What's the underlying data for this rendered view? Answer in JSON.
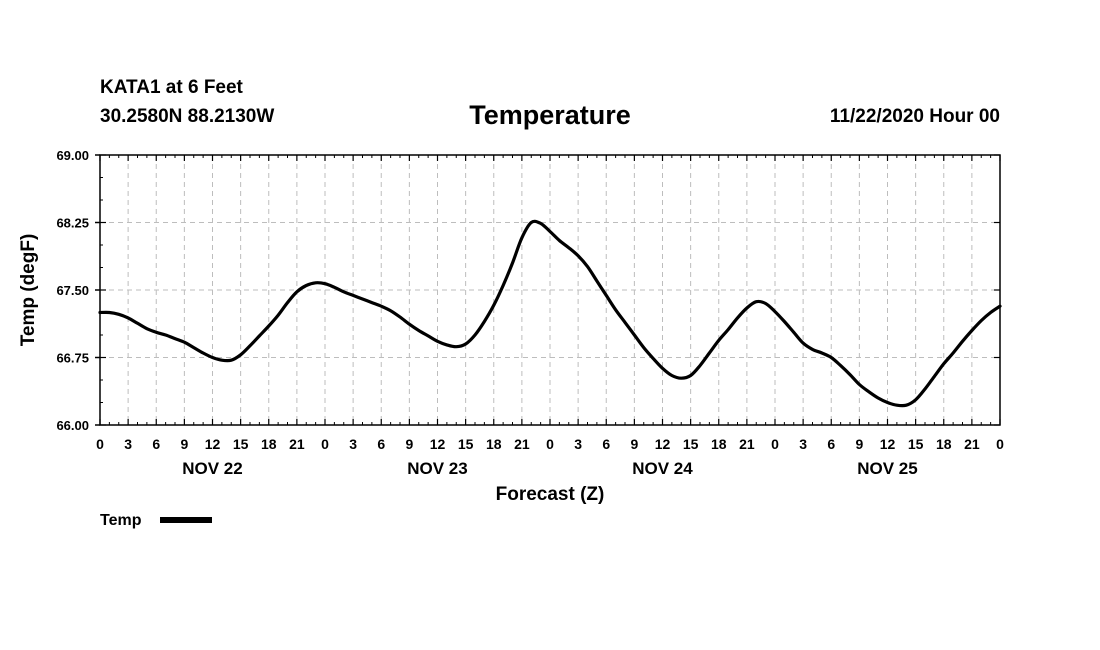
{
  "header": {
    "station": "KATA1 at 6 Feet",
    "coords": "30.2580N 88.2130W",
    "title": "Temperature",
    "run_time": "11/22/2020 Hour 00"
  },
  "chart_data": {
    "type": "line",
    "title": "Temperature",
    "xlabel": "Forecast (Z)",
    "ylabel": "Temp (degF)",
    "xlim": [
      0,
      96
    ],
    "ylim": [
      66.0,
      69.0
    ],
    "x_unit": "hours from 11/22/2020 00Z",
    "yticks": [
      "66.00",
      "66.75",
      "67.50",
      "68.25",
      "69.00"
    ],
    "xticks": [
      "0",
      "3",
      "6",
      "9",
      "12",
      "15",
      "18",
      "21",
      "0",
      "3",
      "6",
      "9",
      "12",
      "15",
      "18",
      "21",
      "0",
      "3",
      "6",
      "9",
      "12",
      "15",
      "18",
      "21",
      "0",
      "3",
      "6",
      "9",
      "12",
      "15",
      "18",
      "21",
      "0"
    ],
    "days": [
      {
        "label": "NOV 22",
        "center_hour": 12
      },
      {
        "label": "NOV 23",
        "center_hour": 36
      },
      {
        "label": "NOV 24",
        "center_hour": 60
      },
      {
        "label": "NOV 25",
        "center_hour": 84
      }
    ],
    "grid": true,
    "legend": {
      "position": "bottom-left",
      "label": "Temp"
    },
    "series": [
      {
        "name": "Temp",
        "color": "#000000",
        "x": [
          0,
          1,
          2,
          3,
          4,
          5,
          6,
          7,
          8,
          9,
          10,
          11,
          12,
          13,
          14,
          15,
          16,
          17,
          18,
          19,
          20,
          21,
          22,
          23,
          24,
          25,
          26,
          27,
          28,
          29,
          30,
          31,
          32,
          33,
          34,
          35,
          36,
          37,
          38,
          39,
          40,
          41,
          42,
          43,
          44,
          45,
          46,
          47,
          48,
          49,
          50,
          51,
          52,
          53,
          54,
          55,
          56,
          57,
          58,
          59,
          60,
          61,
          62,
          63,
          64,
          65,
          66,
          67,
          68,
          69,
          70,
          71,
          72,
          73,
          74,
          75,
          76,
          77,
          78,
          79,
          80,
          81,
          82,
          83,
          84,
          85,
          86,
          87,
          88,
          89,
          90,
          91,
          92,
          93,
          94,
          95,
          96
        ],
        "values": [
          67.25,
          67.25,
          67.23,
          67.19,
          67.13,
          67.07,
          67.03,
          67.0,
          66.96,
          66.92,
          66.86,
          66.8,
          66.75,
          66.72,
          66.72,
          66.78,
          66.88,
          66.99,
          67.1,
          67.22,
          67.36,
          67.48,
          67.55,
          67.58,
          67.57,
          67.53,
          67.48,
          67.44,
          67.4,
          67.36,
          67.32,
          67.27,
          67.2,
          67.12,
          67.05,
          66.99,
          66.93,
          66.89,
          66.87,
          66.9,
          67.0,
          67.15,
          67.33,
          67.55,
          67.8,
          68.08,
          68.25,
          68.24,
          68.15,
          68.05,
          67.97,
          67.88,
          67.76,
          67.6,
          67.44,
          67.28,
          67.14,
          67.0,
          66.86,
          66.74,
          66.63,
          66.55,
          66.52,
          66.55,
          66.66,
          66.8,
          66.94,
          67.06,
          67.19,
          67.3,
          67.37,
          67.35,
          67.26,
          67.15,
          67.03,
          66.91,
          66.84,
          66.8,
          66.75,
          66.66,
          66.56,
          66.45,
          66.37,
          66.3,
          66.25,
          66.22,
          66.22,
          66.28,
          66.4,
          66.54,
          66.68,
          66.8,
          66.93,
          67.05,
          67.16,
          67.25,
          67.32
        ]
      }
    ]
  }
}
